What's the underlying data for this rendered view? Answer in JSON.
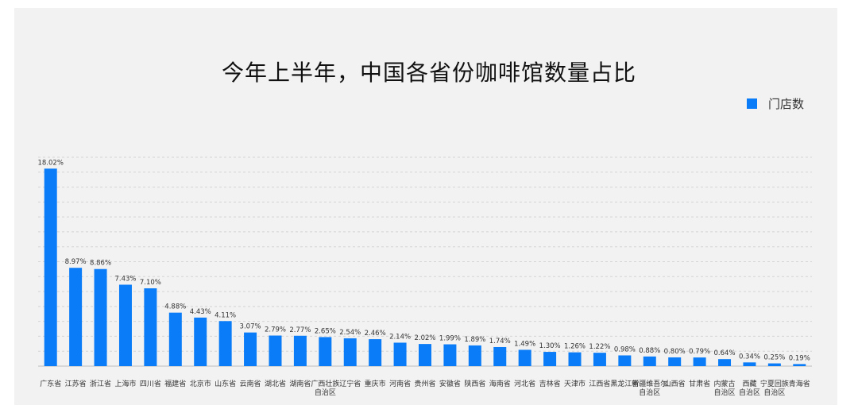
{
  "chart_data": {
    "type": "bar",
    "title": "今年上半年，中国各省份咖啡馆数量占比",
    "legend": {
      "position": "top-right",
      "entries": [
        "门店数"
      ]
    },
    "series": [
      {
        "name": "门店数",
        "color": "#0a7cf7"
      }
    ],
    "ylim": [
      0,
      20
    ],
    "grid": true,
    "categories": [
      [
        "广东省"
      ],
      [
        "江苏省"
      ],
      [
        "浙江省"
      ],
      [
        "上海市"
      ],
      [
        "四川省"
      ],
      [
        "福建省"
      ],
      [
        "北京市"
      ],
      [
        "山东省"
      ],
      [
        "云南省"
      ],
      [
        "湖北省"
      ],
      [
        "湖南省"
      ],
      [
        "广西壮族",
        "自治区"
      ],
      [
        "辽宁省"
      ],
      [
        "重庆市"
      ],
      [
        "河南省"
      ],
      [
        "贵州省"
      ],
      [
        "安徽省"
      ],
      [
        "陕西省"
      ],
      [
        "海南省"
      ],
      [
        "河北省"
      ],
      [
        "吉林省"
      ],
      [
        "天津市"
      ],
      [
        "江西省"
      ],
      [
        "黑龙江省"
      ],
      [
        "新疆维吾尔",
        "自治区"
      ],
      [
        "山西省"
      ],
      [
        "甘肃省"
      ],
      [
        "内蒙古",
        "自治区"
      ],
      [
        "西藏",
        "自治区"
      ],
      [
        "宁夏回族",
        "自治区"
      ],
      [
        "青海省"
      ]
    ],
    "values": [
      18.02,
      8.97,
      8.86,
      7.43,
      7.1,
      4.88,
      4.43,
      4.11,
      3.07,
      2.79,
      2.77,
      2.65,
      2.54,
      2.46,
      2.14,
      2.02,
      1.99,
      1.89,
      1.74,
      1.49,
      1.3,
      1.26,
      1.22,
      0.98,
      0.88,
      0.8,
      0.79,
      0.64,
      0.34,
      0.25,
      0.19
    ],
    "labels": [
      "18.02%",
      "8.97%",
      "8.86%",
      "7.43%",
      "7.10%",
      "4.88%",
      "4.43%",
      "4.11%",
      "3.07%",
      "2.79%",
      "2.77%",
      "2.65%",
      "2.54%",
      "2.46%",
      "2.14%",
      "2.02%",
      "1.99%",
      "1.89%",
      "1.74%",
      "1.49%",
      "1.30%",
      "1.26%",
      "1.22%",
      "0.98%",
      "0.88%",
      "0.80%",
      "0.79%",
      "0.64%",
      "0.34%",
      "0.25%",
      "0.19%"
    ]
  }
}
